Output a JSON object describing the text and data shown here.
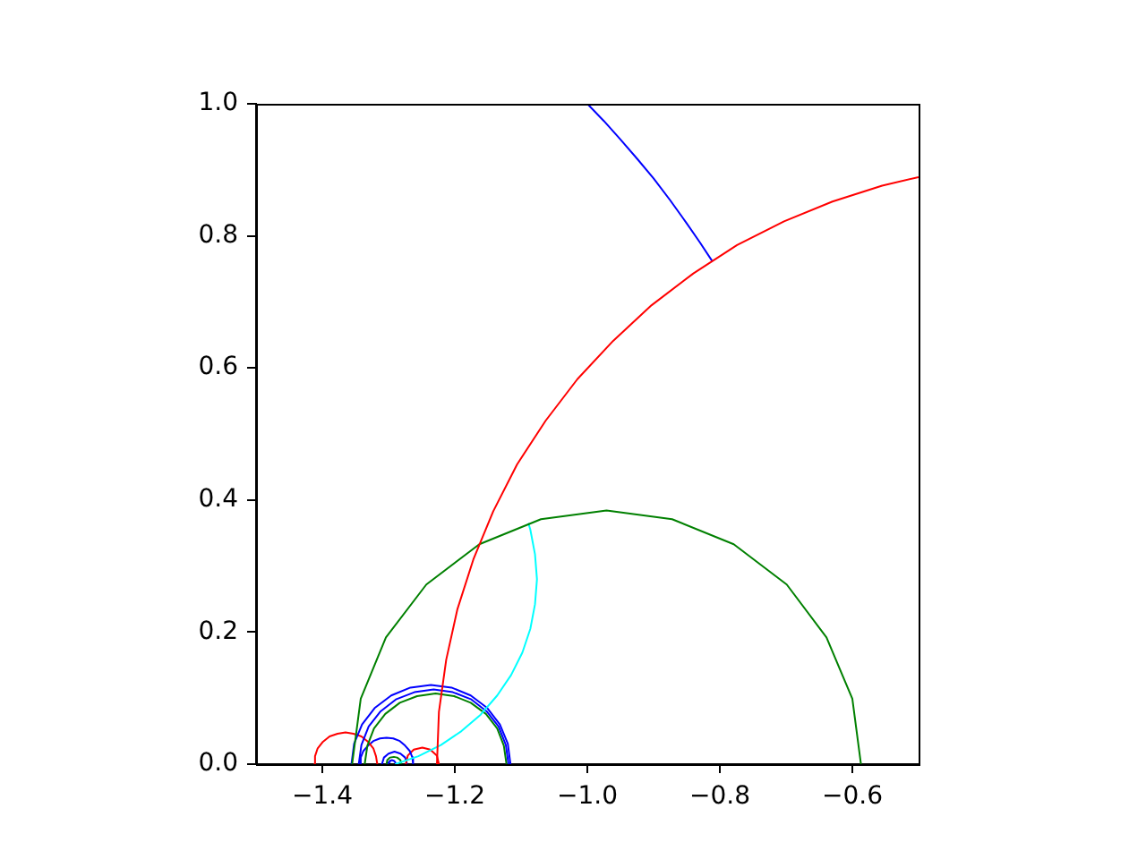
{
  "chart_data": {
    "type": "line",
    "xlim": [
      -1.5,
      -0.5
    ],
    "ylim": [
      0,
      1
    ],
    "xticks": [
      {
        "value": -1.4,
        "label": "−1.4"
      },
      {
        "value": -1.2,
        "label": "−1.2"
      },
      {
        "value": -1.0,
        "label": "−1.0"
      },
      {
        "value": -0.8,
        "label": "−0.8"
      },
      {
        "value": -0.6,
        "label": "−0.6"
      }
    ],
    "yticks": [
      {
        "value": 0,
        "label": "0.0"
      },
      0.2,
      0.4,
      0.6,
      0.8,
      {
        "value": 1,
        "label": "1.0"
      }
    ],
    "grid": false,
    "legend": false,
    "marker": "none",
    "line_style": "solid",
    "series": [
      {
        "color": "#ff0000",
        "x": [
          -1.227,
          -1.224,
          -1.213,
          -1.196,
          -1.172,
          -1.142,
          -1.106,
          -1.063,
          -1.015,
          -0.961,
          -0.903,
          -0.84,
          -0.774,
          -0.703,
          -0.63,
          -0.555,
          -0.5
        ],
        "values": [
          0,
          0.079,
          0.158,
          0.235,
          0.31,
          0.383,
          0.454,
          0.52,
          0.583,
          0.641,
          0.695,
          0.743,
          0.786,
          0.822,
          0.852,
          0.876,
          0.889
        ]
      },
      {
        "color": "#0000ff",
        "x": [
          -1.0,
          -0.975,
          -0.95,
          -0.925,
          -0.9,
          -0.875,
          -0.85,
          -0.83,
          -0.811
        ],
        "values": [
          1.0,
          0.974,
          0.946,
          0.917,
          0.887,
          0.854,
          0.819,
          0.79,
          0.761
        ]
      },
      {
        "color": "#008000",
        "x": [
          -1.355,
          -1.342,
          -1.304,
          -1.243,
          -1.163,
          -1.07,
          -0.971,
          -0.872,
          -0.779,
          -0.699,
          -0.639,
          -0.6,
          -0.587
        ],
        "values": [
          0,
          0.099,
          0.192,
          0.272,
          0.333,
          0.371,
          0.384,
          0.371,
          0.333,
          0.272,
          0.192,
          0.099,
          0
        ]
      },
      {
        "color": "#00ffff",
        "x": [
          -1.29,
          -1.255,
          -1.221,
          -1.19,
          -1.161,
          -1.136,
          -1.115,
          -1.098,
          -1.086,
          -1.079,
          -1.076,
          -1.079,
          -1.086,
          -1.089
        ],
        "values": [
          0,
          0.012,
          0.029,
          0.05,
          0.075,
          0.104,
          0.135,
          0.169,
          0.205,
          0.242,
          0.28,
          0.318,
          0.355,
          0.365
        ]
      },
      {
        "color": "#008000",
        "x": [
          -1.336,
          -1.332,
          -1.322,
          -1.305,
          -1.283,
          -1.257,
          -1.229,
          -1.201,
          -1.176,
          -1.153,
          -1.136,
          -1.126,
          -1.122
        ],
        "values": [
          0,
          0.028,
          0.054,
          0.076,
          0.093,
          0.103,
          0.107,
          0.103,
          0.093,
          0.076,
          0.054,
          0.028,
          0
        ]
      },
      {
        "color": "#0000ff",
        "x": [
          -1.345,
          -1.341,
          -1.33,
          -1.312,
          -1.289,
          -1.261,
          -1.232,
          -1.203,
          -1.175,
          -1.152,
          -1.134,
          -1.123,
          -1.119
        ],
        "values": [
          0,
          0.029,
          0.057,
          0.08,
          0.098,
          0.109,
          0.113,
          0.109,
          0.098,
          0.08,
          0.057,
          0.029,
          0
        ]
      },
      {
        "color": "#0000ff",
        "x": [
          -1.356,
          -1.352,
          -1.34,
          -1.321,
          -1.296,
          -1.267,
          -1.236,
          -1.205,
          -1.176,
          -1.151,
          -1.132,
          -1.12,
          -1.116
        ],
        "values": [
          0,
          0.031,
          0.06,
          0.085,
          0.104,
          0.116,
          0.12,
          0.116,
          0.104,
          0.085,
          0.06,
          0.031,
          0
        ]
      },
      {
        "color": "#ff0000",
        "x": [
          -1.413,
          -1.411,
          -1.407,
          -1.399,
          -1.389,
          -1.377,
          -1.365,
          -1.353,
          -1.341,
          -1.331,
          -1.323,
          -1.319,
          -1.317
        ],
        "values": [
          0,
          0.012,
          0.024,
          0.034,
          0.042,
          0.046,
          0.048,
          0.046,
          0.042,
          0.034,
          0.024,
          0.012,
          0
        ]
      },
      {
        "color": "#0000ff",
        "x": [
          -1.343,
          -1.342,
          -1.338,
          -1.331,
          -1.323,
          -1.313,
          -1.303,
          -1.293,
          -1.283,
          -1.275,
          -1.268,
          -1.264,
          -1.263
        ],
        "values": [
          0,
          0.01,
          0.02,
          0.028,
          0.035,
          0.039,
          0.04,
          0.039,
          0.035,
          0.028,
          0.02,
          0.01,
          0
        ]
      },
      {
        "color": "#ff0000",
        "x": [
          -1.274,
          -1.271,
          -1.262,
          -1.249,
          -1.237,
          -1.227,
          -1.224
        ],
        "values": [
          0,
          0.013,
          0.022,
          0.025,
          0.022,
          0.013,
          0
        ]
      },
      {
        "color": "#0000ff",
        "x": [
          -1.31,
          -1.307,
          -1.3,
          -1.291,
          -1.282,
          -1.275,
          -1.272
        ],
        "values": [
          0,
          0.01,
          0.016,
          0.019,
          0.016,
          0.01,
          0
        ]
      },
      {
        "color": "#008000",
        "x": [
          -1.303,
          -1.302,
          -1.298,
          -1.292,
          -1.287,
          -1.282,
          -1.281
        ],
        "values": [
          0,
          0.006,
          0.01,
          0.011,
          0.01,
          0.006,
          0
        ]
      },
      {
        "color": "#0000ff",
        "x": [
          -1.301,
          -1.3,
          -1.298,
          -1.295,
          -1.292,
          -1.29,
          -1.289
        ],
        "values": [
          0,
          0.003,
          0.005,
          0.006,
          0.005,
          0.003,
          0
        ]
      }
    ]
  }
}
